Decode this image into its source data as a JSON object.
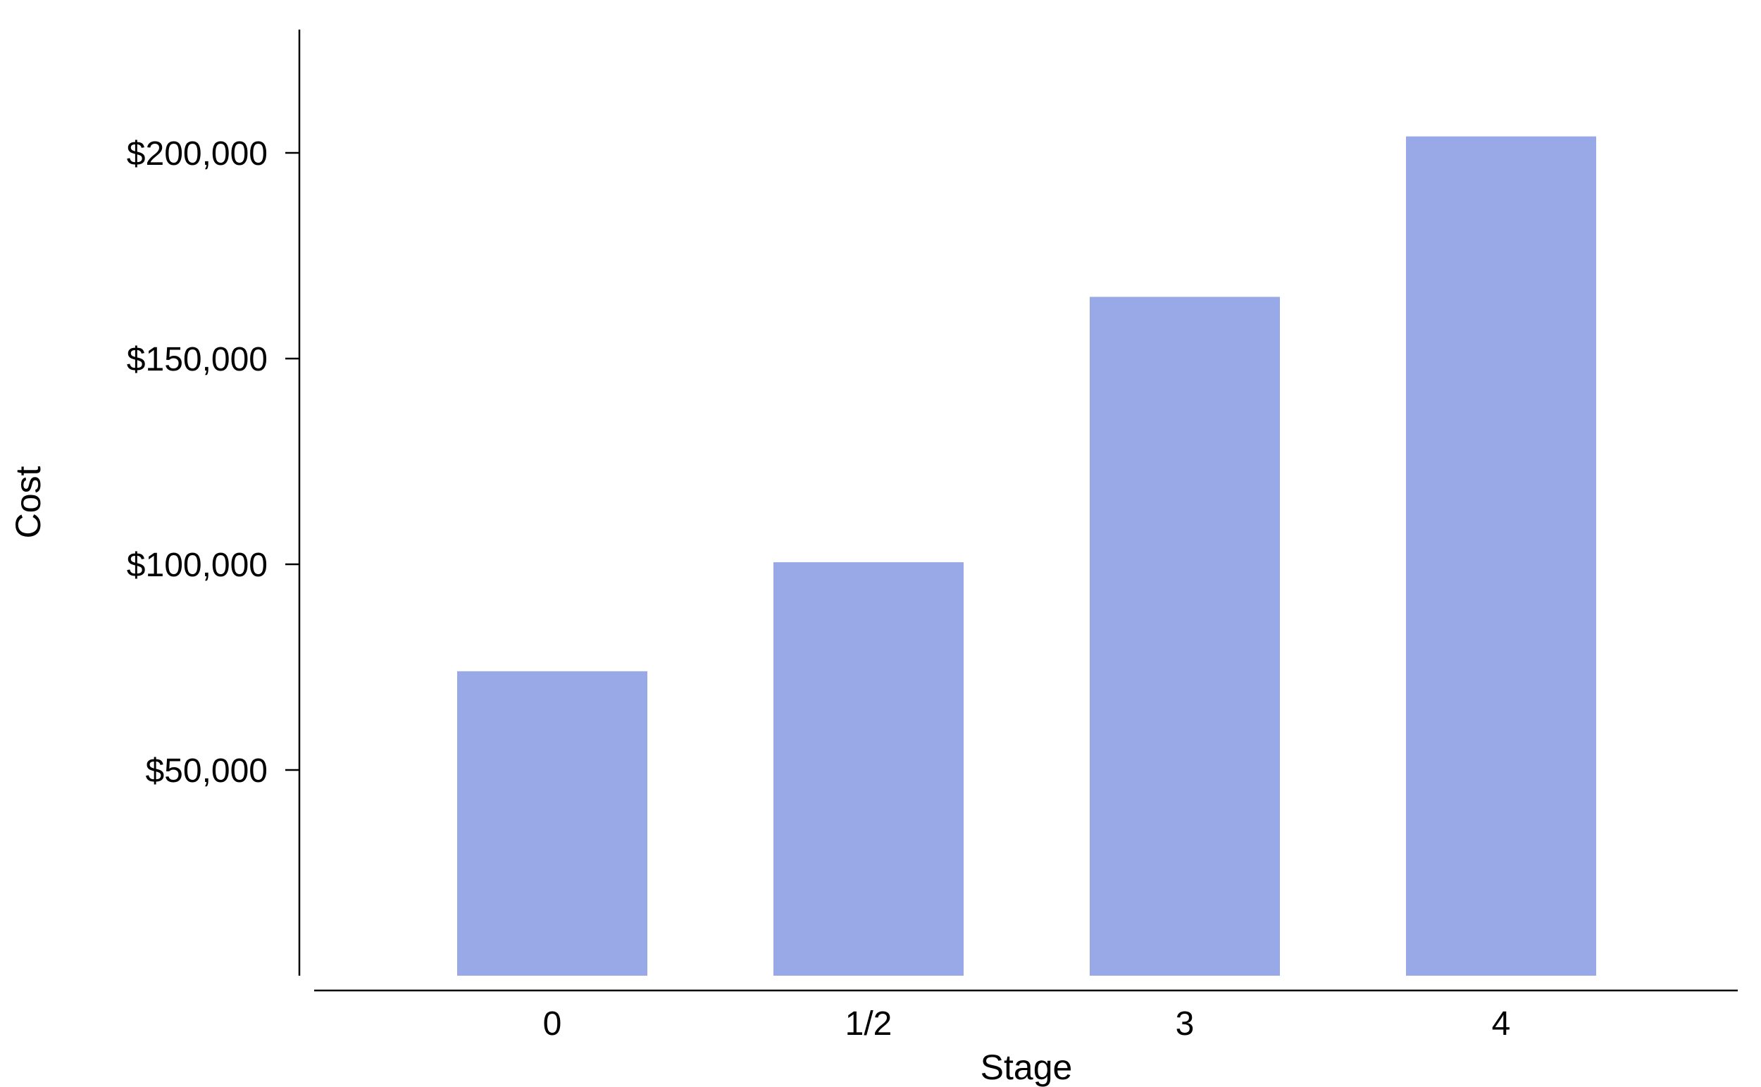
{
  "chart_data": {
    "type": "bar",
    "categories": [
      "0",
      "1/2",
      "3",
      "4"
    ],
    "values": [
      74000,
      100500,
      165000,
      204000
    ],
    "xlabel": "Stage",
    "ylabel": "Cost",
    "ylim": [
      0,
      230000
    ],
    "yticks": [
      50000,
      100000,
      150000,
      200000
    ],
    "ytick_labels": [
      "$50,000",
      "$100,000",
      "$150,000",
      "$200,000"
    ],
    "grid": false,
    "legend": "none",
    "bar_color": "#99a9e8"
  }
}
